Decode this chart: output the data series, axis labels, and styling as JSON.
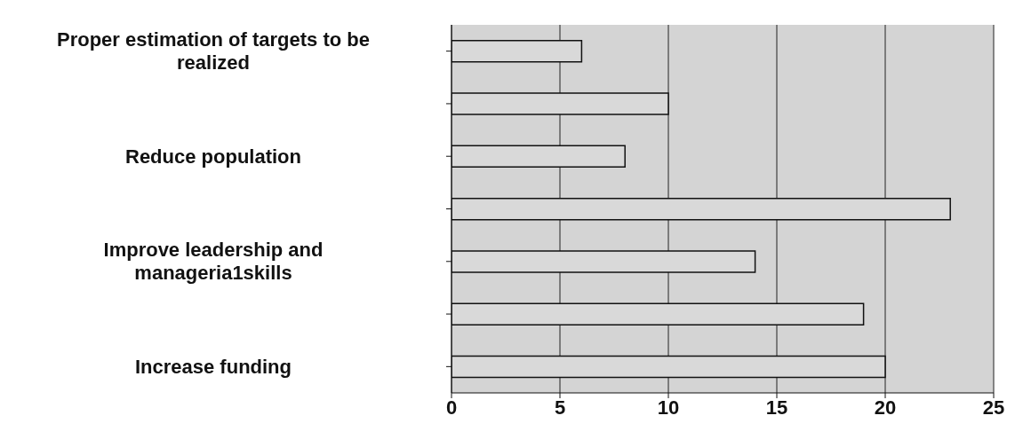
{
  "chart_data": {
    "type": "bar",
    "orientation": "horizontal",
    "categories": [
      "Proper estimation of targets to be realized",
      null,
      "Reduce population",
      null,
      "Improve leadership and manageria1skills",
      null,
      "Increase funding"
    ],
    "values": [
      6,
      10,
      8,
      23,
      14,
      19,
      20
    ],
    "color": "#d9d9d9",
    "xlim": [
      0,
      25
    ],
    "xticks": [
      0,
      5,
      10,
      15,
      20,
      25
    ],
    "grid": "x"
  }
}
